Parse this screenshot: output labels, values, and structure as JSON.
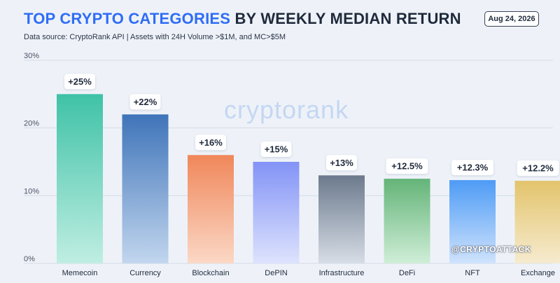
{
  "header": {
    "title_accent": "TOP CRYPTO CATEGORIES",
    "title_rest": " BY WEEKLY MEDIAN RETURN",
    "subtitle": "Data source: CryptoRank API | Assets with 24H Volume >$1M, and MC>$5M",
    "date": "Aug 24, 2026"
  },
  "watermark": "cryptorank",
  "handle": "@CRYPTOATTACK",
  "chart_data": {
    "type": "bar",
    "title": "TOP CRYPTO CATEGORIES BY WEEKLY MEDIAN RETURN",
    "categories": [
      "Memecoin",
      "Currency",
      "Blockchain",
      "DePIN",
      "Infrastructure",
      "DeFi",
      "NFT",
      "Exchange"
    ],
    "values": [
      25,
      22,
      16,
      15,
      13,
      12.5,
      12.3,
      12.2
    ],
    "value_labels": [
      "+25%",
      "+22%",
      "+16%",
      "+15%",
      "+13%",
      "+12.5%",
      "+12.3%",
      "+12.2%"
    ],
    "ylim": [
      0,
      30
    ],
    "yticks": [
      0,
      10,
      20,
      30
    ],
    "ytick_labels": [
      "0%",
      "10%",
      "20%",
      "30%"
    ],
    "grid": true,
    "colors": [
      [
        "#3fc2a7",
        "#bfeee2"
      ],
      [
        "#3f74b9",
        "#c2d6ee"
      ],
      [
        "#f0875a",
        "#fbd8c6"
      ],
      [
        "#8393f6",
        "#dde3fd"
      ],
      [
        "#6c7a8d",
        "#d7dde6"
      ],
      [
        "#64b478",
        "#cfeed7"
      ],
      [
        "#4e9bf5",
        "#cfe3fd"
      ],
      [
        "#e3c46c",
        "#f6ebcf"
      ]
    ]
  }
}
